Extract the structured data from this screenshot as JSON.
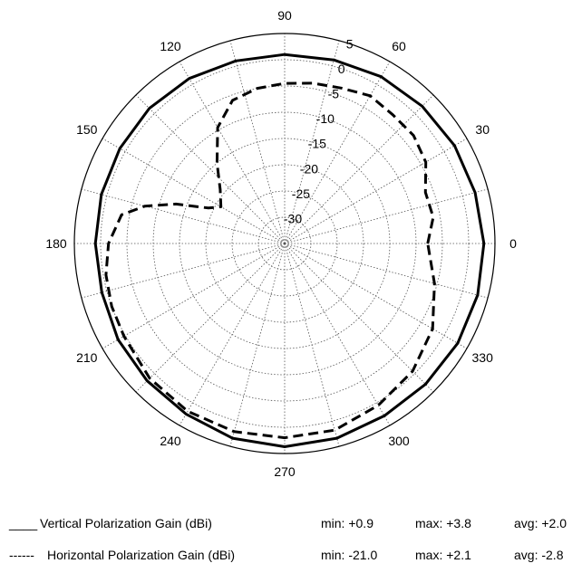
{
  "chart_data": {
    "type": "polar-line",
    "title": "",
    "angle_labels": [
      "0",
      "30",
      "60",
      "90",
      "120",
      "150",
      "180",
      "210",
      "240",
      "270",
      "300",
      "330"
    ],
    "radial_labels": [
      "5",
      "0",
      "-5",
      "-10",
      "-15",
      "-20",
      "-25",
      "-30"
    ],
    "rlim": [
      -35,
      5
    ],
    "grid": true,
    "legend_position": "bottom",
    "series": [
      {
        "name": "Vertical Polarization Gain (dBi)",
        "line_style": "solid",
        "stats": {
          "min": "min: +0.9",
          "max": "max: +3.8",
          "avg": "avg: +2.0"
        },
        "points": [
          {
            "angle": 0,
            "gain": 2.9
          },
          {
            "angle": 15,
            "gain": 2.5
          },
          {
            "angle": 30,
            "gain": 2.3
          },
          {
            "angle": 45,
            "gain": 2.0
          },
          {
            "angle": 60,
            "gain": 1.7
          },
          {
            "angle": 75,
            "gain": 1.2
          },
          {
            "angle": 90,
            "gain": 1.0
          },
          {
            "angle": 105,
            "gain": 1.0
          },
          {
            "angle": 120,
            "gain": 1.3
          },
          {
            "angle": 135,
            "gain": 1.4
          },
          {
            "angle": 150,
            "gain": 1.2
          },
          {
            "angle": 165,
            "gain": 1.1
          },
          {
            "angle": 180,
            "gain": 1.0
          },
          {
            "angle": 195,
            "gain": 1.0
          },
          {
            "angle": 210,
            "gain": 1.6
          },
          {
            "angle": 225,
            "gain": 2.0
          },
          {
            "angle": 240,
            "gain": 2.5
          },
          {
            "angle": 255,
            "gain": 3.4
          },
          {
            "angle": 270,
            "gain": 3.7
          },
          {
            "angle": 285,
            "gain": 3.4
          },
          {
            "angle": 300,
            "gain": 2.9
          },
          {
            "angle": 315,
            "gain": 2.9
          },
          {
            "angle": 330,
            "gain": 3.0
          },
          {
            "angle": 345,
            "gain": 3.0
          },
          {
            "angle": 360,
            "gain": 2.9
          }
        ]
      },
      {
        "name": "Horizontal Polarization Gain (dBi)",
        "line_style": "dashed",
        "stats": {
          "min": "min: -21.0",
          "max": "max: +2.1",
          "avg": "avg: -2.8"
        },
        "points": [
          {
            "angle": 0,
            "gain": -7.8
          },
          {
            "angle": 10,
            "gain": -6.3
          },
          {
            "angle": 20,
            "gain": -6.5
          },
          {
            "angle": 30,
            "gain": -4.0
          },
          {
            "angle": 40,
            "gain": -3.0
          },
          {
            "angle": 50,
            "gain": -3.0
          },
          {
            "angle": 60,
            "gain": -2.5
          },
          {
            "angle": 70,
            "gain": -3.5
          },
          {
            "angle": 80,
            "gain": -4.0
          },
          {
            "angle": 90,
            "gain": -4.5
          },
          {
            "angle": 100,
            "gain": -5.0
          },
          {
            "angle": 110,
            "gain": -6.0
          },
          {
            "angle": 120,
            "gain": -9.5
          },
          {
            "angle": 130,
            "gain": -15.0
          },
          {
            "angle": 140,
            "gain": -19.0
          },
          {
            "angle": 150,
            "gain": -21.0
          },
          {
            "angle": 155,
            "gain": -19.0
          },
          {
            "angle": 160,
            "gain": -13.0
          },
          {
            "angle": 165,
            "gain": -7.5
          },
          {
            "angle": 170,
            "gain": -3.5
          },
          {
            "angle": 180,
            "gain": -1.5
          },
          {
            "angle": 190,
            "gain": -0.5
          },
          {
            "angle": 200,
            "gain": 0.0
          },
          {
            "angle": 210,
            "gain": 0.3
          },
          {
            "angle": 225,
            "gain": 1.3
          },
          {
            "angle": 240,
            "gain": 1.9
          },
          {
            "angle": 255,
            "gain": 2.1
          },
          {
            "angle": 270,
            "gain": 2.0
          },
          {
            "angle": 285,
            "gain": 1.8
          },
          {
            "angle": 300,
            "gain": 0.6
          },
          {
            "angle": 315,
            "gain": -0.6
          },
          {
            "angle": 330,
            "gain": -2.5
          },
          {
            "angle": 345,
            "gain": -5.5
          },
          {
            "angle": 360,
            "gain": -7.8
          }
        ]
      }
    ]
  }
}
